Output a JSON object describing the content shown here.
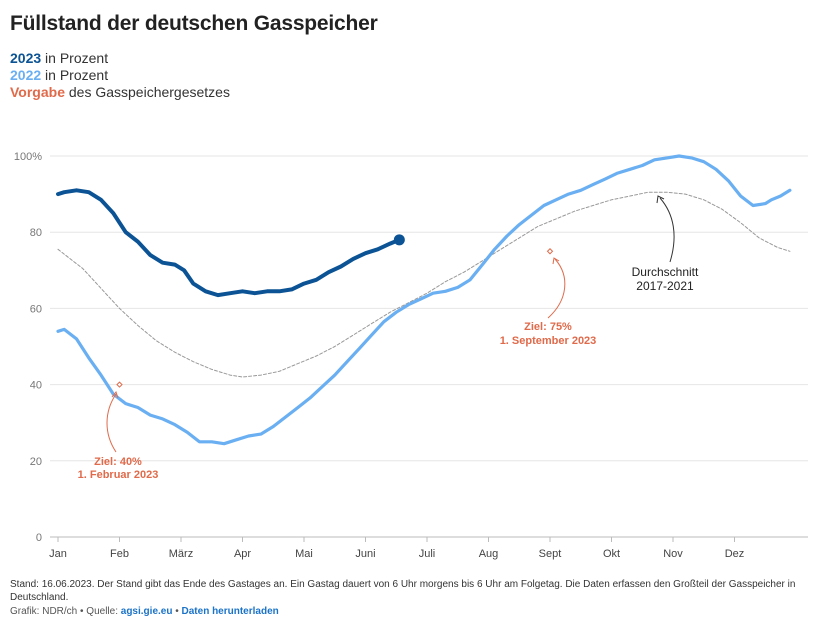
{
  "title": "Füllstand der deutschen Gasspeicher",
  "legend": [
    {
      "key": "2023",
      "text": " in Prozent",
      "color": "#0b5394"
    },
    {
      "key": "2022",
      "text": " in Prozent",
      "color": "#6aaff2"
    },
    {
      "key": "Vorgabe",
      "text": " des Gasspeichergesetzes",
      "color": "#e06a4a"
    }
  ],
  "footer": {
    "note": "Stand: 16.06.2023. Der Stand gibt das Ende des Gastages an. Ein Gastag dauert von 6 Uhr morgens bis 6 Uhr am Folgetag. Die Daten erfassen den Großteil der Gasspeicher in Deutschland.",
    "credit_prefix": "Grafik: NDR/ch • Quelle: ",
    "source_link": "agsi.gie.eu",
    "separator": " • ",
    "download_link": "Daten herunterladen"
  },
  "chart_data": {
    "type": "line",
    "title": "Füllstand der deutschen Gasspeicher",
    "xlabel": "",
    "ylabel": "",
    "x_unit": "month (1 = Jan, fractional = position within year)",
    "xlim": [
      1,
      13
    ],
    "ylim": [
      0,
      100
    ],
    "yticks": [
      0,
      20,
      40,
      60,
      80,
      100
    ],
    "ytick_labels": [
      "0",
      "20",
      "40",
      "60",
      "80",
      "100%"
    ],
    "xtick_labels": [
      "Jan",
      "Feb",
      "März",
      "Apr",
      "Mai",
      "Juni",
      "Juli",
      "Aug",
      "Sept",
      "Okt",
      "Nov",
      "Dez"
    ],
    "grid": true,
    "series": [
      {
        "name": "2023",
        "color": "#0b5394",
        "x": [
          1.0,
          1.1,
          1.3,
          1.5,
          1.7,
          1.9,
          2.1,
          2.3,
          2.5,
          2.7,
          2.9,
          3.05,
          3.2,
          3.4,
          3.6,
          3.8,
          4.0,
          4.2,
          4.4,
          4.6,
          4.8,
          5.0,
          5.2,
          5.4,
          5.6,
          5.8,
          6.0,
          6.2,
          6.4,
          6.55
        ],
        "y": [
          90,
          90.5,
          91,
          90.5,
          88.5,
          85,
          80,
          77.5,
          74,
          72,
          71.5,
          70,
          66.5,
          64.5,
          63.5,
          64,
          64.5,
          64,
          64.5,
          64.5,
          65,
          66.5,
          67.5,
          69.5,
          71,
          73,
          74.5,
          75.5,
          77,
          78
        ]
      },
      {
        "name": "2022",
        "color": "#6aaff2",
        "x": [
          1.0,
          1.1,
          1.3,
          1.5,
          1.7,
          1.9,
          2.1,
          2.3,
          2.5,
          2.7,
          2.9,
          3.1,
          3.3,
          3.5,
          3.7,
          3.9,
          4.1,
          4.3,
          4.5,
          4.7,
          4.9,
          5.1,
          5.3,
          5.5,
          5.7,
          5.9,
          6.1,
          6.3,
          6.5,
          6.7,
          6.9,
          7.1,
          7.3,
          7.5,
          7.7,
          7.9,
          8.1,
          8.3,
          8.5,
          8.7,
          8.9,
          9.1,
          9.3,
          9.5,
          9.7,
          9.9,
          10.1,
          10.3,
          10.5,
          10.7,
          10.9,
          11.1,
          11.3,
          11.5,
          11.7,
          11.9,
          12.1,
          12.3,
          12.5,
          12.6,
          12.75,
          12.9
        ],
        "y": [
          54,
          54.5,
          52,
          47,
          42.5,
          37.5,
          35,
          34,
          32,
          31,
          29.5,
          27.5,
          25,
          25,
          24.5,
          25.5,
          26.5,
          27,
          29,
          31.5,
          34,
          36.5,
          39.5,
          42.5,
          46,
          49.5,
          53,
          56.5,
          59,
          61,
          62.5,
          64,
          64.5,
          65.5,
          67.5,
          71.5,
          75.5,
          79,
          82,
          84.5,
          87,
          88.5,
          90,
          91,
          92.5,
          94,
          95.5,
          96.5,
          97.5,
          99,
          99.5,
          100,
          99.5,
          98.5,
          96.5,
          93.5,
          89.5,
          87,
          87.5,
          88.5,
          89.5,
          91
        ]
      },
      {
        "name": "Durchschnitt 2017-2021",
        "color": "#999999",
        "x": [
          1.0,
          1.2,
          1.4,
          1.6,
          1.8,
          2.0,
          2.3,
          2.6,
          2.9,
          3.2,
          3.5,
          3.8,
          4.0,
          4.3,
          4.6,
          4.9,
          5.2,
          5.5,
          5.8,
          6.1,
          6.4,
          6.7,
          7.0,
          7.3,
          7.6,
          7.9,
          8.2,
          8.5,
          8.8,
          9.1,
          9.4,
          9.7,
          10.0,
          10.3,
          10.6,
          10.9,
          11.2,
          11.5,
          11.8,
          12.1,
          12.4,
          12.7,
          12.9
        ],
        "y": [
          75.5,
          73,
          70.5,
          67,
          63.5,
          60,
          55.5,
          51.5,
          48.5,
          46,
          44,
          42.5,
          42,
          42.5,
          43.5,
          45.5,
          47.5,
          50,
          53,
          56,
          59,
          61.5,
          64,
          67,
          69.5,
          72.5,
          75.5,
          78.5,
          81.5,
          83.5,
          85.5,
          87,
          88.5,
          89.5,
          90.5,
          90.5,
          90,
          88.5,
          86,
          82.5,
          78.5,
          76,
          75
        ]
      }
    ],
    "targets": [
      {
        "label_line1": "Ziel: 40%",
        "label_line2": "1. Februar 2023",
        "x": 2.0,
        "y": 40,
        "color": "#e06a4a"
      },
      {
        "label_line1": "Ziel: 75%",
        "label_line2": "1. September 2023",
        "x": 9.0,
        "y": 75,
        "color": "#e06a4a"
      }
    ],
    "annotations": [
      {
        "label_line1": "Durchschnitt",
        "label_line2": "2017-2021",
        "target_series": "Durchschnitt 2017-2021"
      }
    ]
  }
}
